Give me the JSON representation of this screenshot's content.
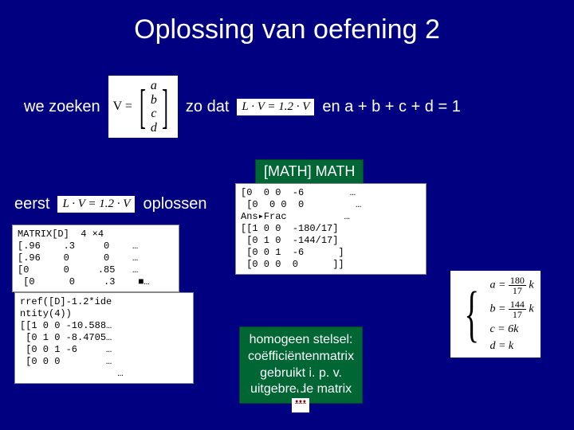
{
  "title": "Oplossing van oefening 2",
  "line1": {
    "we_zoeken": "we zoeken",
    "V_eq": "V =",
    "vec": [
      "a",
      "b",
      "c",
      "d"
    ],
    "zo_dat": "zo dat",
    "eq": "L · V = 1.2 · V",
    "constraint": "en a + b + c + d = 1"
  },
  "callout1": "[MATH] MATH",
  "line2": {
    "eerst": "eerst",
    "eq": "L · V = 1.2 · V",
    "oplossen": "oplossen"
  },
  "calc_d": "MATRIX[D]  4 ×4\n[.96    .3     0    …\n[.96    0      0    …\n[0      0     .85   …\n [0      0     .3    ■…",
  "calc_rref": "rref([D]-1.2*ide\nntity(4))\n[[1 0 0 -10.588…\n [0 1 0 -8.4705…\n [0 0 1 -6     …\n [0 0 0        …\n                 …",
  "calc_ans": "[0  0 0  -6        …\n [0  0 0  0         …\nAns▸Frac          …\n[[1 0 0  -180/17]\n [0 1 0  -144/17]\n [0 0 1  -6      ]\n [0 0 0  0      ]]",
  "callout2": {
    "l1": "homogeen stelsel:",
    "l2": "coëfficiëntenmatrix",
    "l3": "gebruikt i. p. v.",
    "l4": "uitgebreide matrix"
  },
  "result": {
    "a_num": "180",
    "a_den": "17",
    "b_num": "144",
    "b_den": "17",
    "c": "c = 6k",
    "d": "d = k"
  }
}
